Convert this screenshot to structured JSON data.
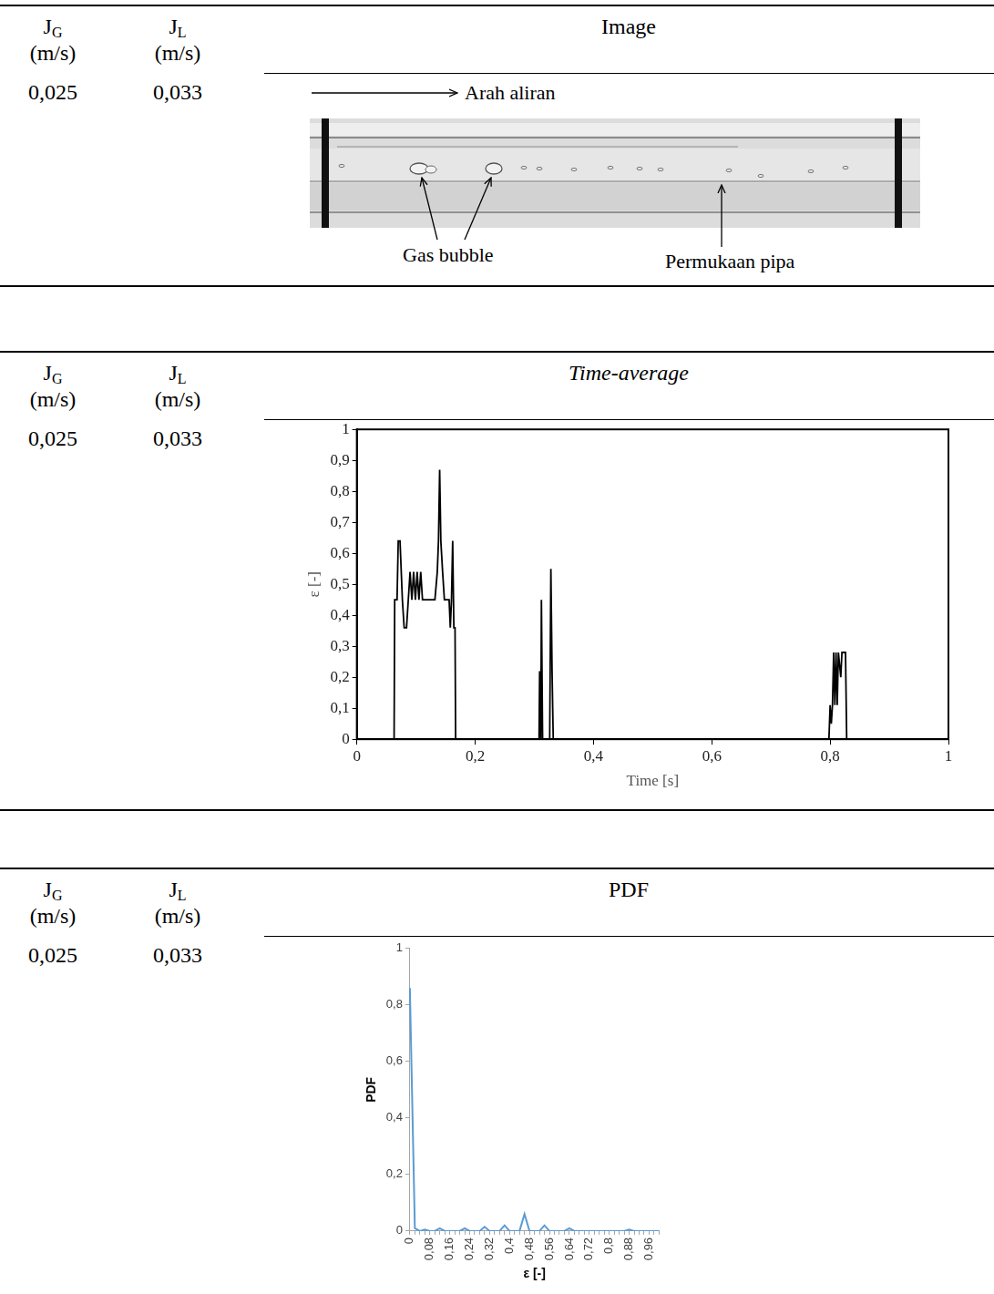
{
  "table": {
    "header": [
      {
        "symbol": "J",
        "subscript": "G",
        "unit": "(m/s)"
      },
      {
        "symbol": "J",
        "subscript": "L",
        "unit": "(m/s)"
      }
    ],
    "sections": [
      {
        "title": "Image",
        "jg": "0,025",
        "jl": "0,033",
        "image": {
          "flow_label": "Arah aliran",
          "bubble_label": "Gas bubble",
          "wall_label": "Permukaan pipa"
        }
      },
      {
        "title": "Time-average",
        "jg": "0,025",
        "jl": "0,033"
      },
      {
        "title": "PDF",
        "jg": "0,025",
        "jl": "0,033"
      }
    ]
  },
  "chart_data": [
    {
      "type": "line",
      "x_label": "Time [s]",
      "y_label": "ε [-]",
      "color": "#000000",
      "grid": false,
      "x": [
        0,
        0.063,
        0.064,
        0.068,
        0.07,
        0.073,
        0.077,
        0.08,
        0.084,
        0.087,
        0.09,
        0.093,
        0.096,
        0.099,
        0.102,
        0.105,
        0.108,
        0.111,
        0.132,
        0.136,
        0.138,
        0.14,
        0.142,
        0.145,
        0.148,
        0.156,
        0.158,
        0.16,
        0.162,
        0.164,
        0.166,
        0.167,
        0.308,
        0.309,
        0.311,
        0.312,
        0.314,
        0.326,
        0.328,
        0.33,
        0.332,
        0.798,
        0.8,
        0.802,
        0.804,
        0.806,
        0.808,
        0.81,
        0.812,
        0.814,
        0.818,
        0.82,
        0.826,
        0.828,
        1
      ],
      "values": [
        0,
        0,
        0.45,
        0.45,
        0.64,
        0.64,
        0.45,
        0.36,
        0.36,
        0.45,
        0.54,
        0.45,
        0.54,
        0.45,
        0.54,
        0.45,
        0.54,
        0.45,
        0.45,
        0.54,
        0.64,
        0.87,
        0.64,
        0.54,
        0.45,
        0.45,
        0.36,
        0.45,
        0.64,
        0.36,
        0.36,
        0,
        0,
        0.22,
        0,
        0.45,
        0,
        0,
        0.55,
        0.22,
        0,
        0,
        0.11,
        0.05,
        0.11,
        0.28,
        0.11,
        0.28,
        0.11,
        0.28,
        0.2,
        0.28,
        0.28,
        0,
        0
      ],
      "xlim": [
        0,
        1
      ],
      "xticks": [
        0,
        {
          "value": 0.2,
          "label": "0,2"
        },
        {
          "value": 0.4,
          "label": "0,4"
        },
        {
          "value": 0.6,
          "label": "0,6"
        },
        {
          "value": 0.8,
          "label": "0,8"
        },
        1
      ],
      "ylim": [
        0,
        1
      ],
      "yticks": [
        0,
        {
          "value": 0.1,
          "label": "0,1"
        },
        {
          "value": 0.2,
          "label": "0,2"
        },
        {
          "value": 0.3,
          "label": "0,3"
        },
        {
          "value": 0.4,
          "label": "0,4"
        },
        {
          "value": 0.5,
          "label": "0,5"
        },
        {
          "value": 0.6,
          "label": "0,6"
        },
        {
          "value": 0.7,
          "label": "0,7"
        },
        {
          "value": 0.8,
          "label": "0,8"
        },
        {
          "value": 0.9,
          "label": "0,9"
        },
        1
      ]
    },
    {
      "type": "line",
      "x_label": "ε [-]",
      "y_label": "PDF",
      "color": "#5b9bd5",
      "grid": false,
      "categories": [
        "0",
        null,
        null,
        null,
        "0,08",
        null,
        null,
        null,
        "0,16",
        null,
        null,
        null,
        "0,24",
        null,
        null,
        null,
        "0,32",
        null,
        null,
        null,
        "0,4",
        null,
        null,
        null,
        "0,48",
        null,
        null,
        null,
        "0,56",
        null,
        null,
        null,
        "0,64",
        null,
        null,
        null,
        "0,72",
        null,
        null,
        null,
        "0,8",
        null,
        null,
        null,
        "0,88",
        null,
        null,
        null,
        "0,96",
        null,
        null
      ],
      "values": [
        0.86,
        0.01,
        0,
        0.005,
        0,
        0,
        0.01,
        0,
        0,
        0,
        0,
        0.01,
        0,
        0,
        0,
        0.015,
        0,
        0,
        0,
        0.02,
        0,
        0,
        0,
        0.06,
        0,
        0,
        0,
        0.02,
        0,
        0,
        0,
        0,
        0.01,
        0,
        0,
        0,
        0,
        0,
        0,
        0,
        0,
        0,
        0,
        0,
        0.005,
        0,
        0,
        0,
        0,
        0,
        0
      ],
      "ylim": [
        0,
        1
      ],
      "yticks": [
        0,
        {
          "value": 0.2,
          "label": "0,2"
        },
        {
          "value": 0.4,
          "label": "0,4"
        },
        {
          "value": 0.6,
          "label": "0,6"
        },
        {
          "value": 0.8,
          "label": "0,8"
        },
        1
      ]
    }
  ]
}
